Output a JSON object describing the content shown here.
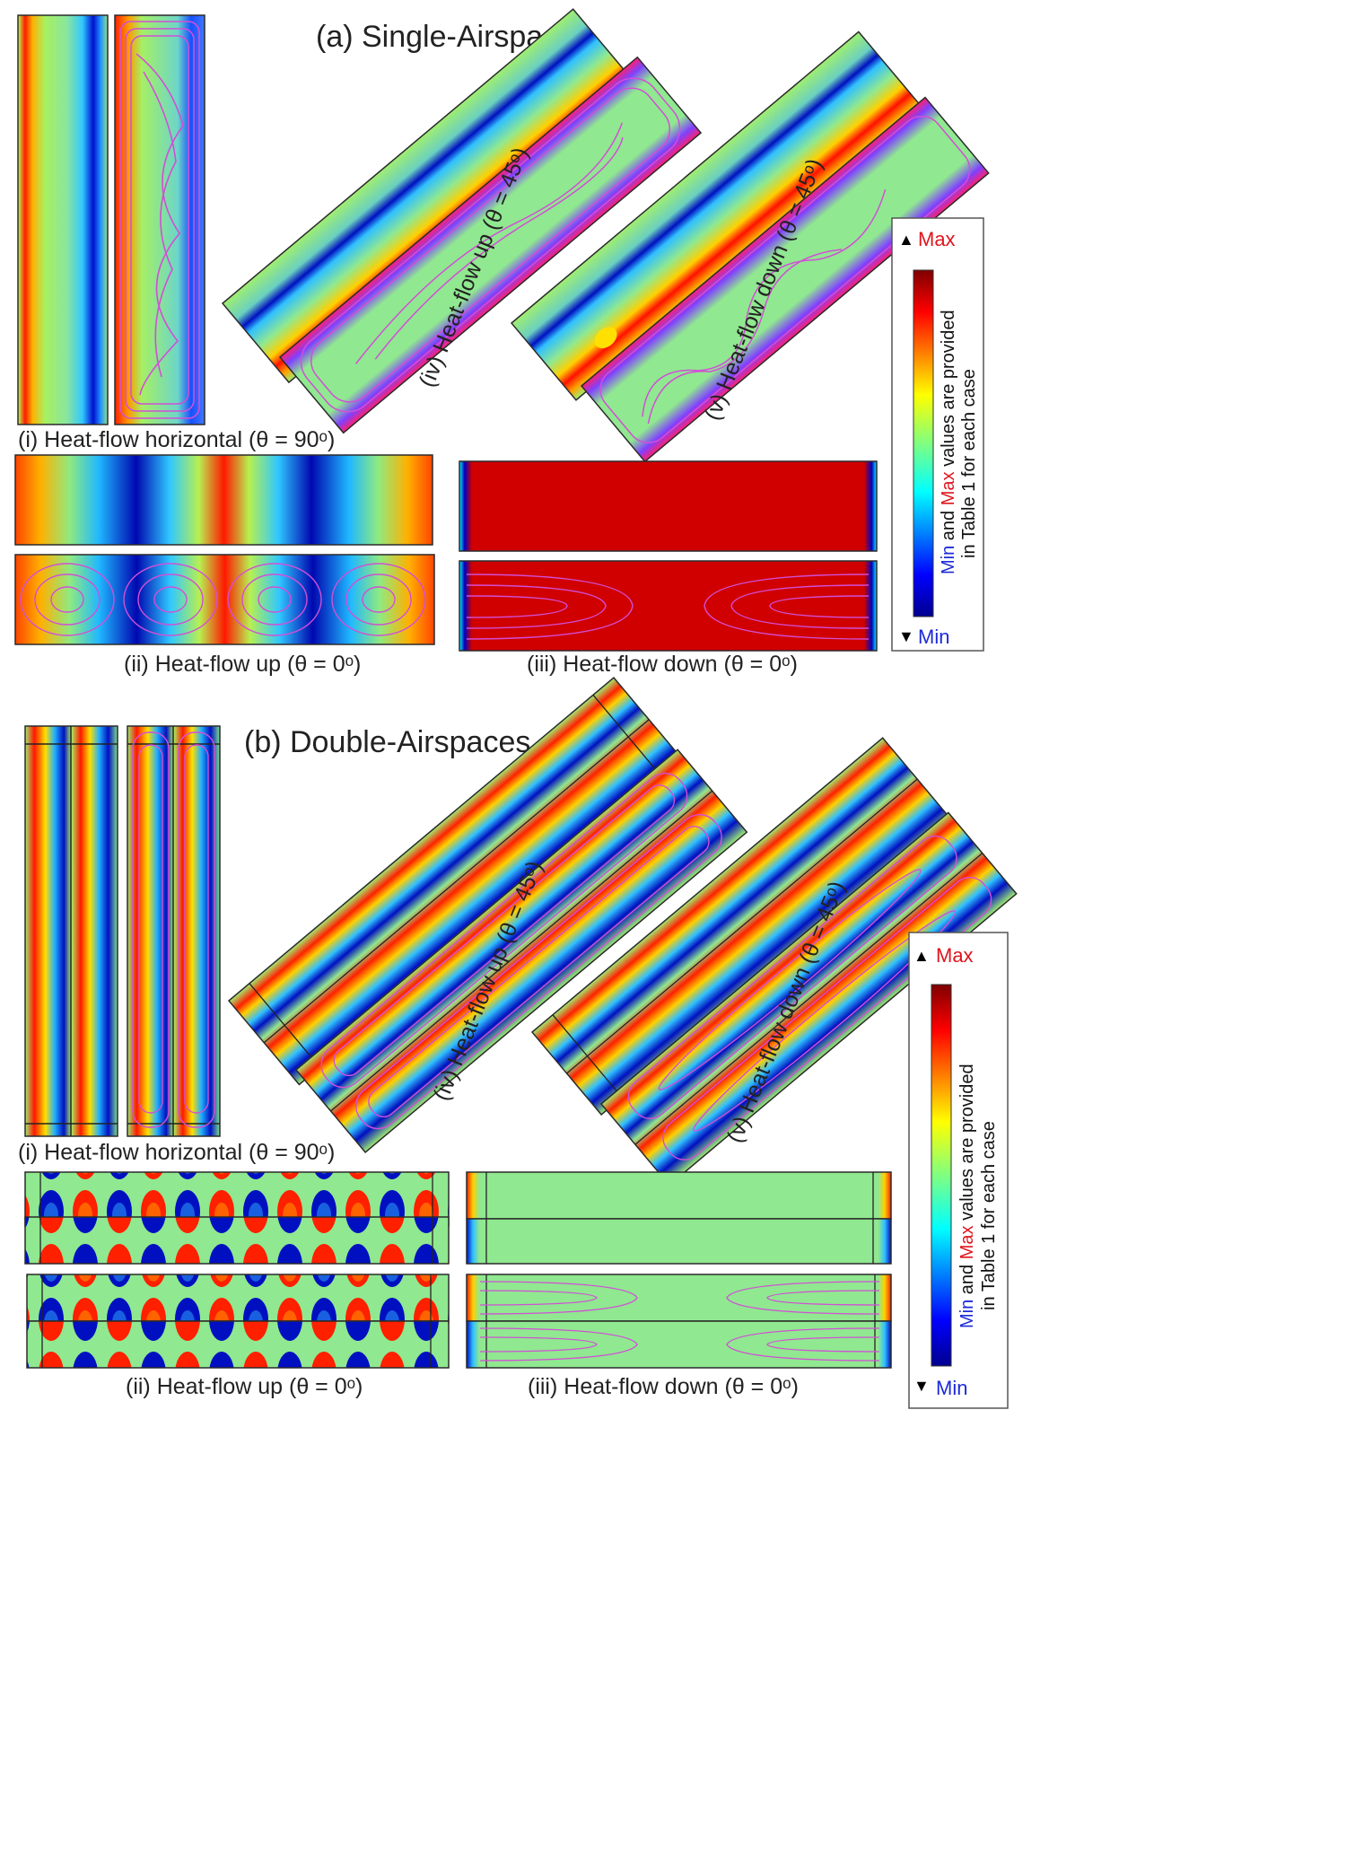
{
  "section_a": {
    "title": "(a) Single-Airspace",
    "panels": {
      "i": "(i) Heat-flow horizontal (θ = 90ᵒ)",
      "ii": "(ii) Heat-flow up (θ = 0ᵒ)",
      "iii": "(iii) Heat-flow down (θ = 0ᵒ)",
      "iv": "(iv) Heat-flow up (θ = 45ᵒ)",
      "v": "(v) Heat-flow down (θ = 45ᵒ)"
    },
    "legend": {
      "max": "Max",
      "min": "Min",
      "note_min": "Min",
      "note_and": " and ",
      "note_max": "Max",
      "note_rest": " values are provided",
      "note_line2": "in Table 1 for each case"
    }
  },
  "section_b": {
    "title": "(b) Double-Airspaces",
    "panels": {
      "i": "(i) Heat-flow horizontal (θ = 90ᵒ)",
      "ii": "(ii) Heat-flow up (θ = 0ᵒ)",
      "iii": "(iii) Heat-flow down (θ = 0ᵒ)",
      "iv": "(iv) Heat-flow up (θ = 45ᵒ)",
      "v": "(v) Heat-flow down (θ = 45ᵒ)"
    },
    "legend": {
      "max": "Max",
      "min": "Min",
      "note_min": "Min",
      "note_and": " and ",
      "note_max": "Max",
      "note_rest": " values are provided",
      "note_line2": "in Table 1 for each case"
    }
  },
  "colors": {
    "max_text": "#e0141e",
    "min_text": "#1c2ad8",
    "streamline": "#d24fd6",
    "panel_border": "#2a2a2a",
    "neutral_field": "#8fe07a"
  }
}
